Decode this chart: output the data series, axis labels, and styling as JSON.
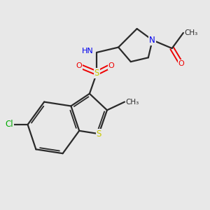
{
  "background_color": "#e8e8e8",
  "bond_color": "#2a2a2a",
  "S_color": "#c8c800",
  "N_color": "#0000ee",
  "O_color": "#ee0000",
  "Cl_color": "#00aa00",
  "figsize": [
    3.0,
    3.0
  ],
  "dpi": 100,
  "xlim": [
    0,
    10
  ],
  "ylim": [
    0,
    10
  ]
}
